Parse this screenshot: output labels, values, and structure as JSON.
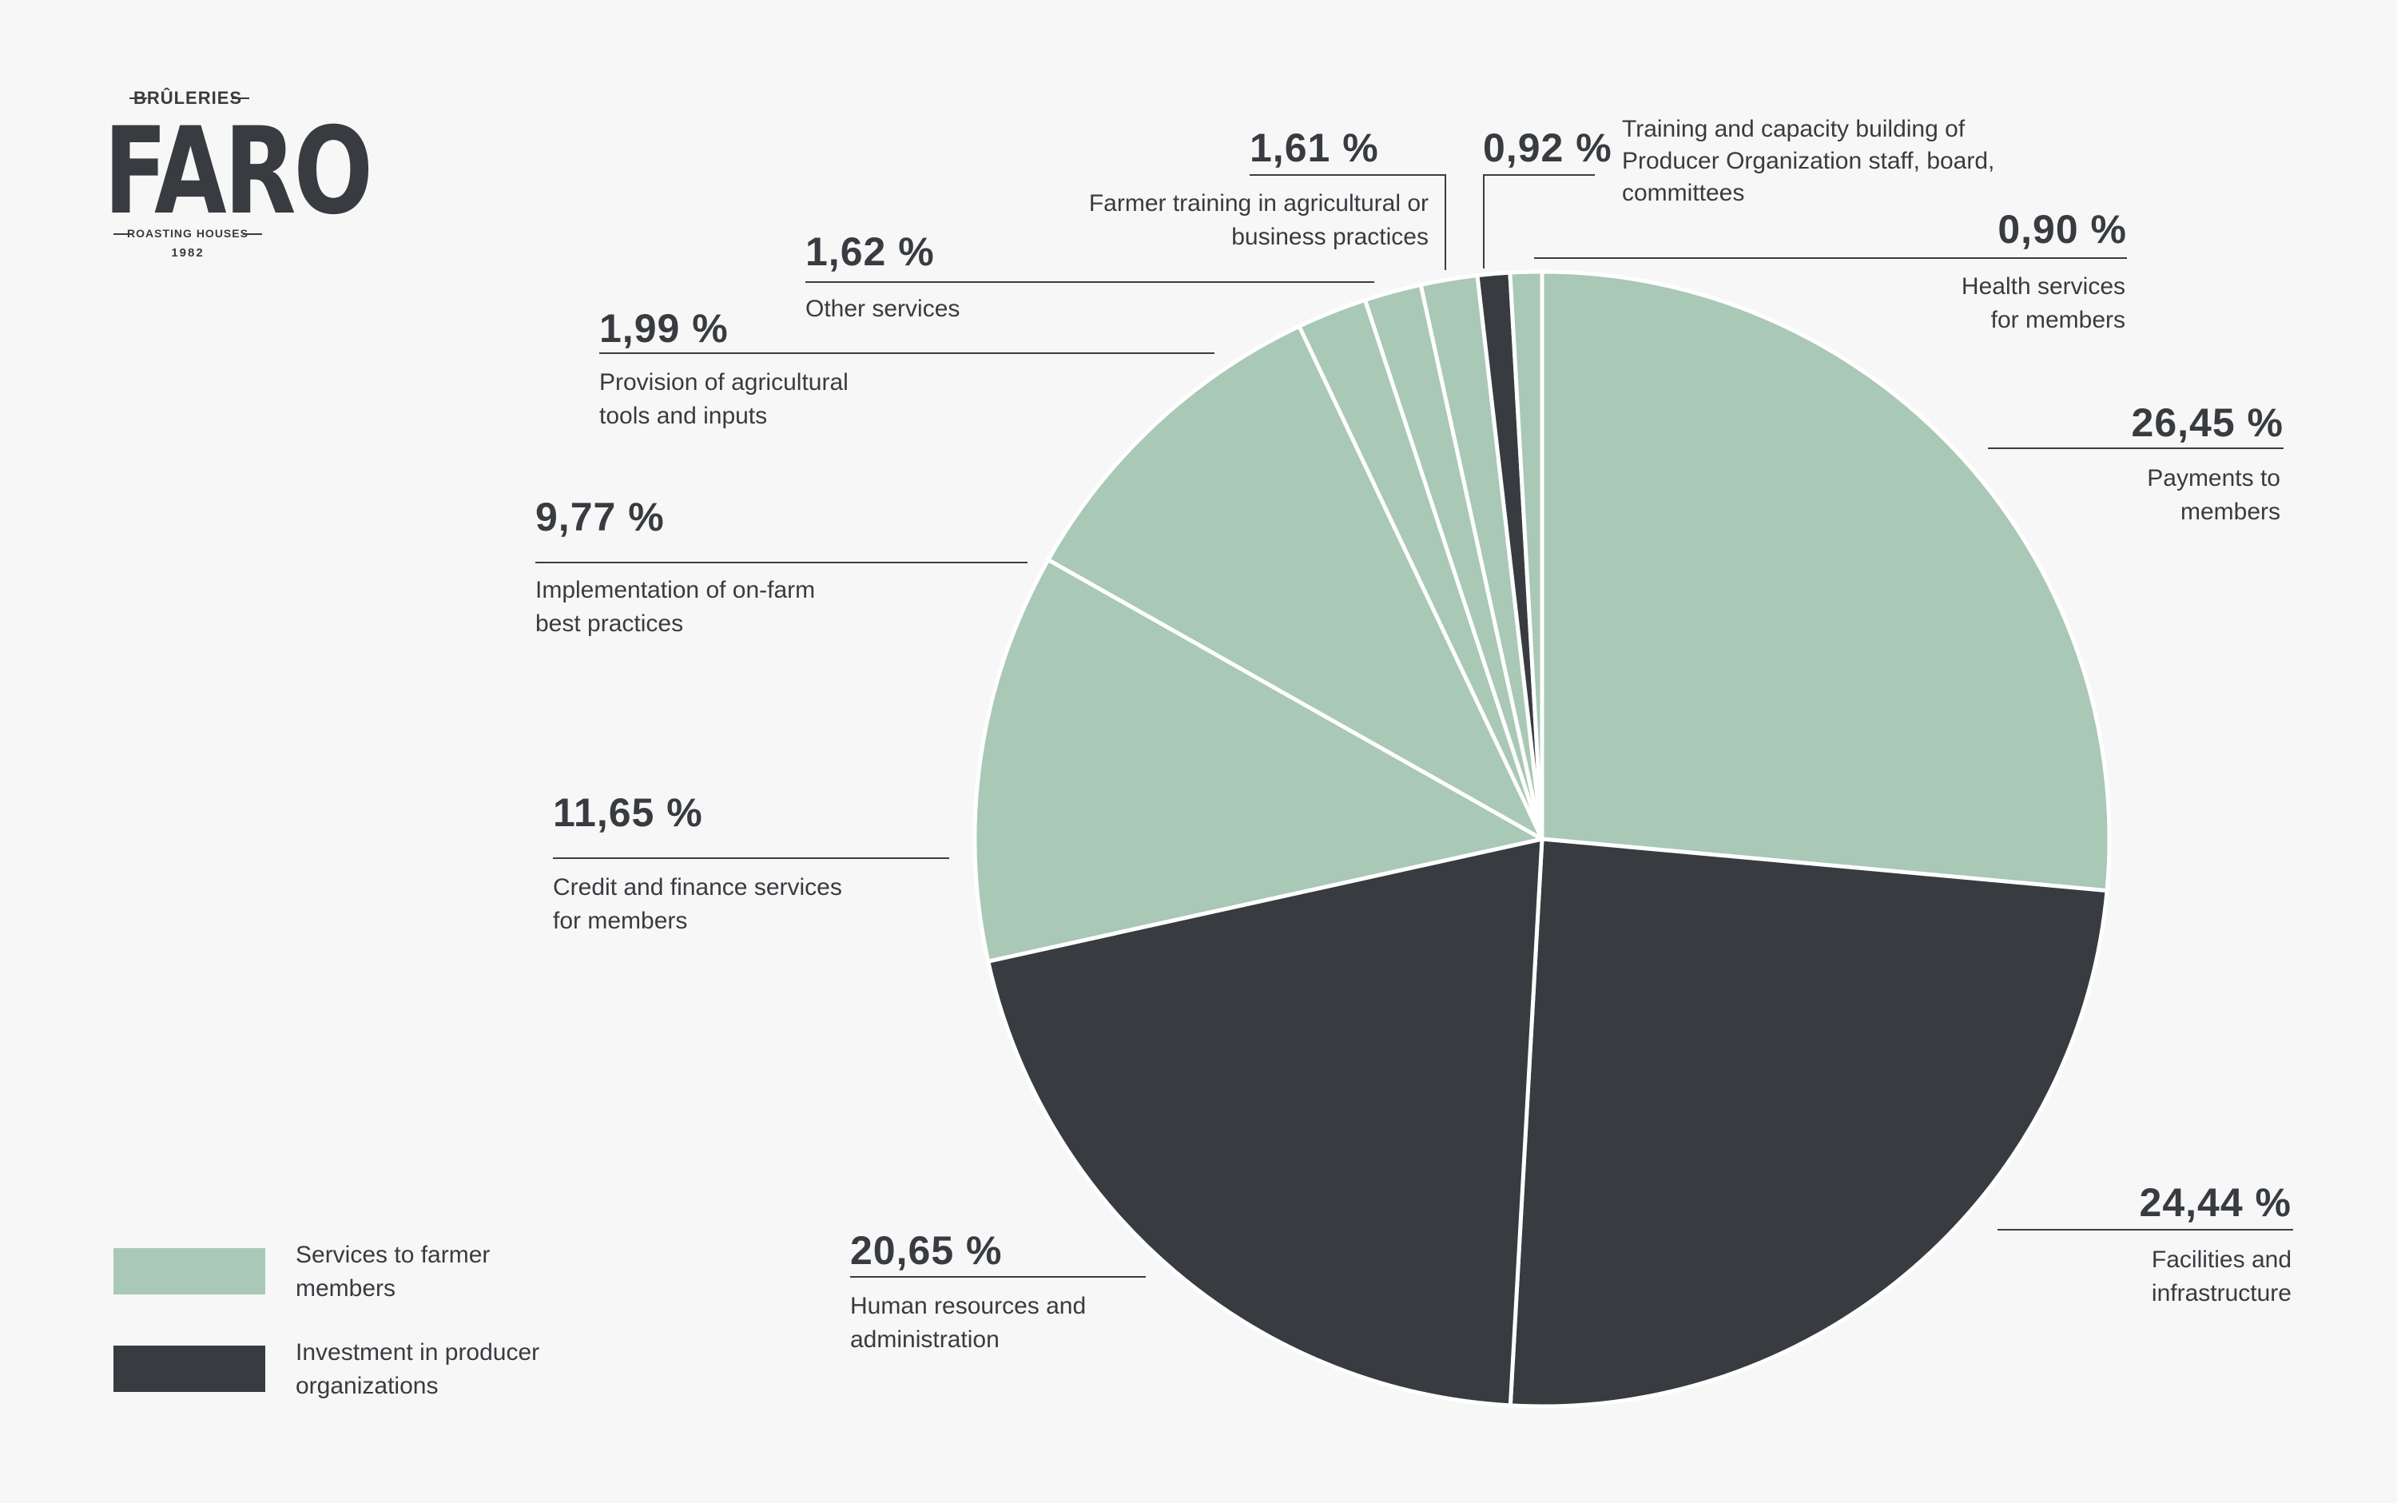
{
  "logo": {
    "top_text": "BRÛLERIES",
    "main_text": "FARO",
    "sub_text": "ROASTING HOUSES",
    "year": "1982"
  },
  "colors": {
    "services": "#a9c8b6",
    "investment": "#383b3f",
    "background": "#f7f7f7"
  },
  "legend": [
    {
      "label_line1": "Services to farmer",
      "label_line2": "members",
      "color": "#a9c8b6"
    },
    {
      "label_line1": "Investment in producer",
      "label_line2": "organizations",
      "color": "#383b3f"
    }
  ],
  "chart_data": {
    "type": "pie",
    "title": "",
    "slices": [
      {
        "value": 26.45,
        "pct_label": "26,45 %",
        "label_line1": "Payments to",
        "label_line2": "members",
        "group": "Services to farmer members"
      },
      {
        "value": 24.44,
        "pct_label": "24,44 %",
        "label_line1": "Facilities and",
        "label_line2": "infrastructure",
        "group": "Investment in producer organizations"
      },
      {
        "value": 20.65,
        "pct_label": "20,65 %",
        "label_line1": "Human resources and",
        "label_line2": "administration",
        "group": "Investment in producer organizations"
      },
      {
        "value": 11.65,
        "pct_label": "11,65 %",
        "label_line1": "Credit and finance services",
        "label_line2": "for members",
        "group": "Services to farmer members"
      },
      {
        "value": 9.77,
        "pct_label": "9,77 %",
        "label_line1": "Implementation of on-farm",
        "label_line2": "best practices",
        "group": "Services to farmer members"
      },
      {
        "value": 1.99,
        "pct_label": "1,99 %",
        "label_line1": "Provision of agricultural",
        "label_line2": "tools and inputs",
        "group": "Services to farmer members"
      },
      {
        "value": 1.62,
        "pct_label": "1,62 %",
        "label_line1": "Other services",
        "label_line2": "",
        "group": "Services to farmer members"
      },
      {
        "value": 1.61,
        "pct_label": "1,61 %",
        "label_line1": "Farmer training in agricultural or",
        "label_line2": "business practices",
        "group": "Services to farmer members"
      },
      {
        "value": 0.92,
        "pct_label": "0,92 %",
        "label_line1": "Training and capacity building of",
        "label_line2": "Producer Organization staff, board,",
        "label_line3": "committees",
        "group": "Investment in producer organizations"
      },
      {
        "value": 0.9,
        "pct_label": "0,90 %",
        "label_line1": "Health services",
        "label_line2": "for members",
        "group": "Services to farmer members"
      }
    ]
  }
}
